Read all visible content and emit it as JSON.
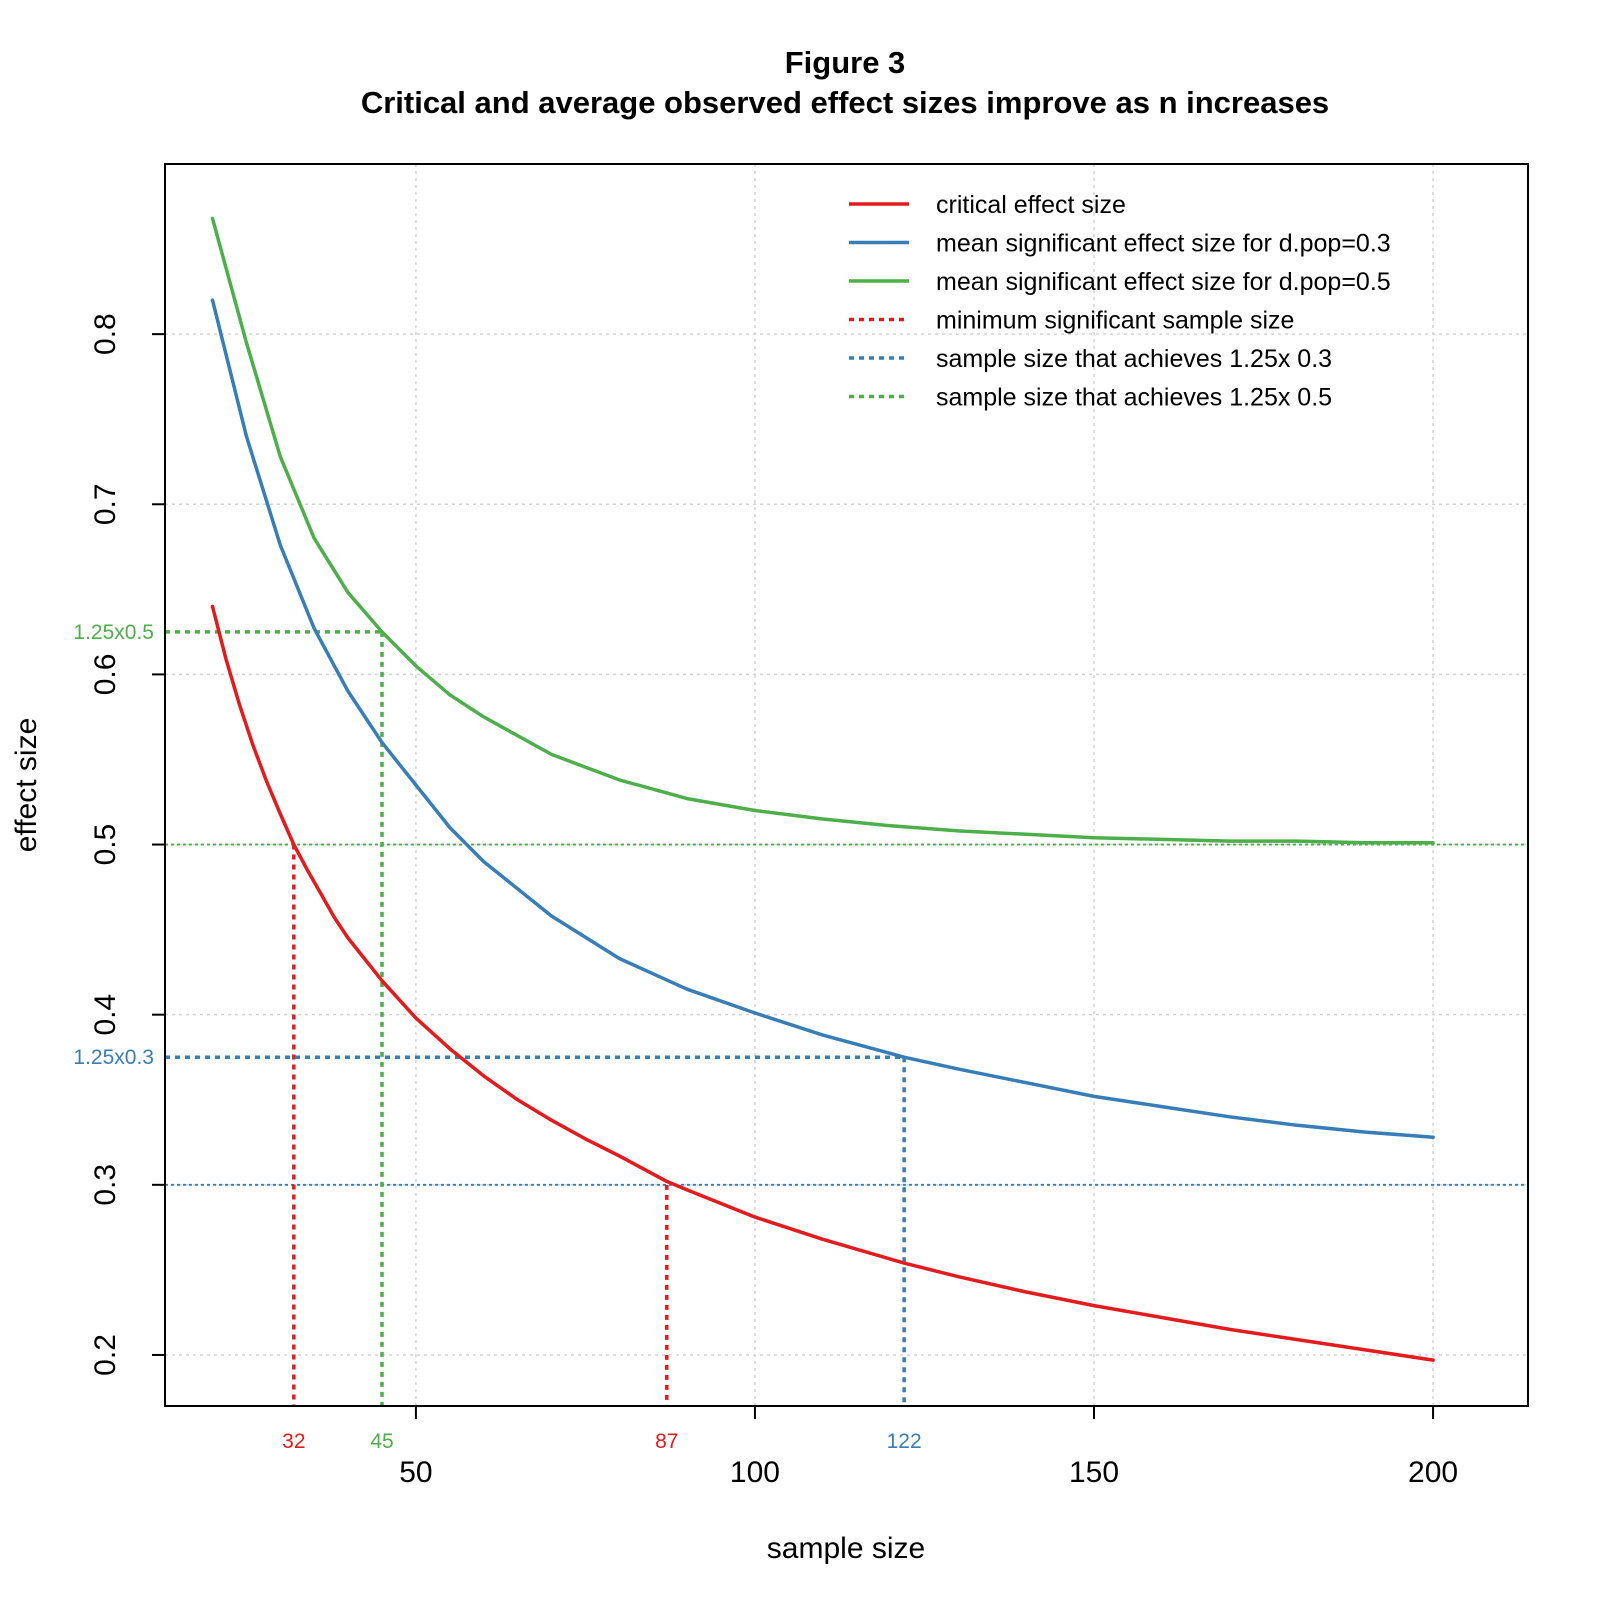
{
  "chart_data": {
    "type": "line",
    "title": "Figure 3",
    "subtitle": "Critical and average observed effect sizes improve as n increases",
    "xlabel": "sample size",
    "ylabel": "effect size",
    "xlim": [
      13,
      214
    ],
    "ylim": [
      0.17,
      0.9
    ],
    "xticks": [
      50,
      100,
      150,
      200
    ],
    "yticks": [
      0.2,
      0.3,
      0.4,
      0.5,
      0.6,
      0.7,
      0.8
    ],
    "grid": true,
    "legend_position": "top-right",
    "series": [
      {
        "name": "critical effect size",
        "color": "#e41a1c",
        "style": "solid",
        "x": [
          20,
          22,
          24,
          26,
          28,
          30,
          32,
          34,
          36,
          38,
          40,
          45,
          50,
          55,
          60,
          65,
          70,
          75,
          80,
          87,
          90,
          100,
          110,
          122,
          130,
          140,
          150,
          160,
          170,
          180,
          190,
          200
        ],
        "y": [
          0.64,
          0.609,
          0.582,
          0.558,
          0.537,
          0.518,
          0.5,
          0.485,
          0.471,
          0.457,
          0.445,
          0.42,
          0.398,
          0.38,
          0.364,
          0.35,
          0.338,
          0.327,
          0.317,
          0.302,
          0.297,
          0.281,
          0.268,
          0.254,
          0.246,
          0.237,
          0.229,
          0.222,
          0.215,
          0.209,
          0.203,
          0.197
        ]
      },
      {
        "name": "mean significant effect size for d.pop=0.3",
        "color": "#377eb8",
        "style": "solid",
        "x": [
          20,
          25,
          30,
          35,
          40,
          45,
          50,
          55,
          60,
          70,
          80,
          90,
          100,
          110,
          122,
          130,
          140,
          150,
          160,
          170,
          180,
          190,
          200
        ],
        "y": [
          0.82,
          0.74,
          0.676,
          0.627,
          0.59,
          0.56,
          0.535,
          0.51,
          0.49,
          0.458,
          0.433,
          0.415,
          0.401,
          0.388,
          0.375,
          0.368,
          0.36,
          0.352,
          0.346,
          0.34,
          0.335,
          0.331,
          0.328
        ]
      },
      {
        "name": "mean significant effect size for d.pop=0.5",
        "color": "#4daf4a",
        "style": "solid",
        "x": [
          20,
          25,
          30,
          35,
          40,
          45,
          50,
          55,
          60,
          70,
          80,
          90,
          100,
          110,
          120,
          130,
          140,
          150,
          160,
          170,
          180,
          190,
          200
        ],
        "y": [
          0.868,
          0.795,
          0.728,
          0.68,
          0.648,
          0.625,
          0.605,
          0.588,
          0.575,
          0.553,
          0.538,
          0.527,
          0.52,
          0.515,
          0.511,
          0.508,
          0.506,
          0.504,
          0.503,
          0.502,
          0.502,
          0.501,
          0.501
        ]
      }
    ],
    "reference_lines": [
      {
        "name": "minimum significant sample size",
        "color": "#e41a1c",
        "x": 32,
        "y": 0.5,
        "label": "32"
      },
      {
        "name": "minimum significant sample size",
        "color": "#e41a1c",
        "x": 87,
        "y": 0.3,
        "label": "87"
      },
      {
        "name": "sample size that achieves 1.25x 0.3",
        "color": "#377eb8",
        "x": 122,
        "y": 0.375,
        "label": "122",
        "ylabel": "1.25x0.3"
      },
      {
        "name": "sample size that achieves 1.25x 0.5",
        "color": "#4daf4a",
        "x": 45,
        "y": 0.625,
        "label": "45",
        "ylabel": "1.25x0.5"
      }
    ],
    "horizontal_lines": [
      {
        "y": 0.5,
        "color": "#4daf4a"
      },
      {
        "y": 0.3,
        "color": "#377eb8"
      }
    ],
    "legend": [
      {
        "label": "critical effect size",
        "color": "#e41a1c",
        "style": "solid"
      },
      {
        "label": "mean significant effect size for d.pop=0.3",
        "color": "#377eb8",
        "style": "solid"
      },
      {
        "label": "mean significant effect size for d.pop=0.5",
        "color": "#4daf4a",
        "style": "solid"
      },
      {
        "label": "minimum significant sample size",
        "color": "#e41a1c",
        "style": "dotted"
      },
      {
        "label": "sample size that achieves 1.25x 0.3",
        "color": "#377eb8",
        "style": "dotted"
      },
      {
        "label": "sample size that achieves 1.25x 0.5",
        "color": "#4daf4a",
        "style": "dotted"
      }
    ]
  }
}
